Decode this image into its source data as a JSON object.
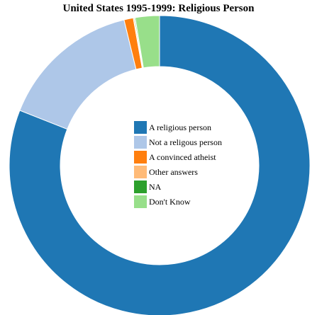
{
  "chart_data": {
    "type": "pie",
    "variant": "donut",
    "title": "United States 1995-1999: Religious Person",
    "categories": [
      "A religious person",
      "Not a religous person",
      "A convinced atheist",
      "Other answers",
      "NA",
      "Don't Know"
    ],
    "values": [
      81.0,
      15.2,
      1.0,
      0.1,
      0.1,
      2.6
    ],
    "colors": [
      "#1f77b4",
      "#aec7e8",
      "#ff7f0e",
      "#ffbb78",
      "#2ca02c",
      "#98df8a"
    ],
    "legend": "center",
    "start_angle": "12 o'clock",
    "direction": "clockwise"
  }
}
